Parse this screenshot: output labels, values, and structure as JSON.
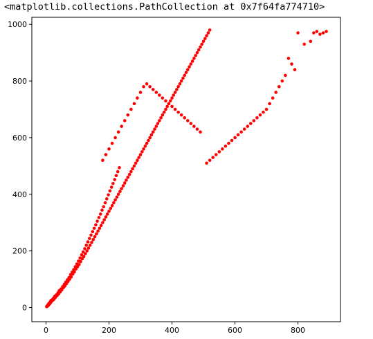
{
  "output": {
    "repr": "<matplotlib.collections.PathCollection at 0x7f64fa774710>"
  },
  "chart_data": {
    "type": "scatter",
    "title": "",
    "xlabel": "",
    "ylabel": "",
    "xlim": [
      -45,
      935
    ],
    "ylim": [
      -50,
      1025
    ],
    "x_ticks": [
      0,
      200,
      400,
      600,
      800
    ],
    "y_ticks": [
      0,
      200,
      400,
      600,
      800,
      1000
    ],
    "grid": false,
    "legend": "none",
    "series": [
      {
        "color": "#ff0000",
        "marker": "circle",
        "points": [
          [
            2,
            3
          ],
          [
            3,
            5
          ],
          [
            4,
            4
          ],
          [
            5,
            8
          ],
          [
            6,
            6
          ],
          [
            7,
            10
          ],
          [
            8,
            9
          ],
          [
            9,
            14
          ],
          [
            10,
            12
          ],
          [
            11,
            16
          ],
          [
            12,
            13
          ],
          [
            13,
            20
          ],
          [
            15,
            18
          ],
          [
            16,
            25
          ],
          [
            18,
            22
          ],
          [
            20,
            28
          ],
          [
            22,
            26
          ],
          [
            24,
            34
          ],
          [
            26,
            30
          ],
          [
            28,
            40
          ],
          [
            30,
            36
          ],
          [
            33,
            45
          ],
          [
            35,
            42
          ],
          [
            38,
            52
          ],
          [
            40,
            48
          ],
          [
            42,
            60
          ],
          [
            45,
            55
          ],
          [
            48,
            66
          ],
          [
            50,
            62
          ],
          [
            53,
            74
          ],
          [
            55,
            70
          ],
          [
            58,
            82
          ],
          [
            60,
            76
          ],
          [
            63,
            90
          ],
          [
            65,
            84
          ],
          [
            68,
            98
          ],
          [
            70,
            92
          ],
          [
            73,
            106
          ],
          [
            75,
            100
          ],
          [
            78,
            116
          ],
          [
            80,
            108
          ],
          [
            83,
            125
          ],
          [
            85,
            118
          ],
          [
            88,
            134
          ],
          [
            90,
            126
          ],
          [
            93,
            144
          ],
          [
            95,
            136
          ],
          [
            98,
            154
          ],
          [
            100,
            144
          ],
          [
            103,
            164
          ],
          [
            105,
            152
          ],
          [
            108,
            175
          ],
          [
            110,
            162
          ],
          [
            113,
            186
          ],
          [
            115,
            172
          ],
          [
            118,
            196
          ],
          [
            120,
            180
          ],
          [
            123,
            208
          ],
          [
            125,
            190
          ],
          [
            128,
            220
          ],
          [
            130,
            200
          ],
          [
            133,
            232
          ],
          [
            135,
            210
          ],
          [
            138,
            244
          ],
          [
            140,
            220
          ],
          [
            143,
            256
          ],
          [
            145,
            230
          ],
          [
            148,
            268
          ],
          [
            150,
            240
          ],
          [
            153,
            280
          ],
          [
            155,
            250
          ],
          [
            158,
            292
          ],
          [
            160,
            260
          ],
          [
            163,
            305
          ],
          [
            165,
            270
          ],
          [
            168,
            318
          ],
          [
            170,
            280
          ],
          [
            173,
            330
          ],
          [
            175,
            290
          ],
          [
            178,
            344
          ],
          [
            180,
            300
          ],
          [
            183,
            356
          ],
          [
            185,
            310
          ],
          [
            188,
            370
          ],
          [
            190,
            320
          ],
          [
            193,
            384
          ],
          [
            195,
            330
          ],
          [
            198,
            398
          ],
          [
            200,
            340
          ],
          [
            203,
            412
          ],
          [
            205,
            350
          ],
          [
            208,
            425
          ],
          [
            210,
            360
          ],
          [
            213,
            438
          ],
          [
            215,
            370
          ],
          [
            218,
            452
          ],
          [
            220,
            380
          ],
          [
            223,
            466
          ],
          [
            225,
            390
          ],
          [
            228,
            480
          ],
          [
            230,
            400
          ],
          [
            233,
            494
          ],
          [
            235,
            410
          ],
          [
            240,
            420
          ],
          [
            245,
            430
          ],
          [
            250,
            440
          ],
          [
            255,
            450
          ],
          [
            260,
            460
          ],
          [
            265,
            470
          ],
          [
            270,
            480
          ],
          [
            275,
            490
          ],
          [
            280,
            500
          ],
          [
            285,
            510
          ],
          [
            290,
            520
          ],
          [
            295,
            530
          ],
          [
            300,
            540
          ],
          [
            305,
            550
          ],
          [
            310,
            560
          ],
          [
            315,
            570
          ],
          [
            320,
            580
          ],
          [
            325,
            590
          ],
          [
            330,
            600
          ],
          [
            335,
            610
          ],
          [
            340,
            620
          ],
          [
            345,
            630
          ],
          [
            350,
            640
          ],
          [
            355,
            650
          ],
          [
            360,
            660
          ],
          [
            365,
            670
          ],
          [
            370,
            680
          ],
          [
            375,
            690
          ],
          [
            380,
            700
          ],
          [
            385,
            710
          ],
          [
            390,
            720
          ],
          [
            395,
            730
          ],
          [
            400,
            740
          ],
          [
            405,
            750
          ],
          [
            410,
            760
          ],
          [
            415,
            770
          ],
          [
            420,
            780
          ],
          [
            425,
            790
          ],
          [
            430,
            800
          ],
          [
            435,
            810
          ],
          [
            440,
            820
          ],
          [
            445,
            830
          ],
          [
            450,
            840
          ],
          [
            455,
            850
          ],
          [
            460,
            860
          ],
          [
            465,
            870
          ],
          [
            470,
            880
          ],
          [
            475,
            890
          ],
          [
            480,
            900
          ],
          [
            485,
            910
          ],
          [
            490,
            920
          ],
          [
            495,
            930
          ],
          [
            500,
            940
          ],
          [
            505,
            950
          ],
          [
            510,
            960
          ],
          [
            515,
            970
          ],
          [
            520,
            980
          ],
          [
            180,
            520
          ],
          [
            190,
            540
          ],
          [
            200,
            560
          ],
          [
            210,
            580
          ],
          [
            220,
            600
          ],
          [
            230,
            620
          ],
          [
            240,
            640
          ],
          [
            250,
            660
          ],
          [
            260,
            680
          ],
          [
            270,
            700
          ],
          [
            280,
            720
          ],
          [
            290,
            740
          ],
          [
            300,
            760
          ],
          [
            310,
            780
          ],
          [
            320,
            790
          ],
          [
            330,
            780
          ],
          [
            340,
            770
          ],
          [
            350,
            760
          ],
          [
            360,
            750
          ],
          [
            370,
            740
          ],
          [
            380,
            730
          ],
          [
            390,
            720
          ],
          [
            400,
            710
          ],
          [
            410,
            700
          ],
          [
            420,
            690
          ],
          [
            430,
            680
          ],
          [
            440,
            670
          ],
          [
            450,
            660
          ],
          [
            460,
            650
          ],
          [
            470,
            640
          ],
          [
            480,
            630
          ],
          [
            490,
            620
          ],
          [
            850,
            970
          ],
          [
            860,
            975
          ],
          [
            870,
            965
          ],
          [
            880,
            970
          ],
          [
            890,
            975
          ],
          [
            800,
            970
          ],
          [
            820,
            930
          ],
          [
            840,
            940
          ],
          [
            770,
            880
          ],
          [
            780,
            860
          ],
          [
            790,
            840
          ],
          [
            760,
            820
          ],
          [
            750,
            800
          ],
          [
            740,
            780
          ],
          [
            730,
            760
          ],
          [
            720,
            740
          ],
          [
            710,
            720
          ],
          [
            700,
            700
          ],
          [
            690,
            690
          ],
          [
            680,
            680
          ],
          [
            670,
            670
          ],
          [
            660,
            660
          ],
          [
            650,
            650
          ],
          [
            640,
            640
          ],
          [
            630,
            630
          ],
          [
            620,
            620
          ],
          [
            610,
            610
          ],
          [
            600,
            600
          ],
          [
            590,
            590
          ],
          [
            580,
            580
          ],
          [
            570,
            570
          ],
          [
            560,
            560
          ],
          [
            550,
            550
          ],
          [
            540,
            540
          ],
          [
            530,
            530
          ],
          [
            520,
            520
          ],
          [
            510,
            510
          ]
        ]
      }
    ]
  }
}
